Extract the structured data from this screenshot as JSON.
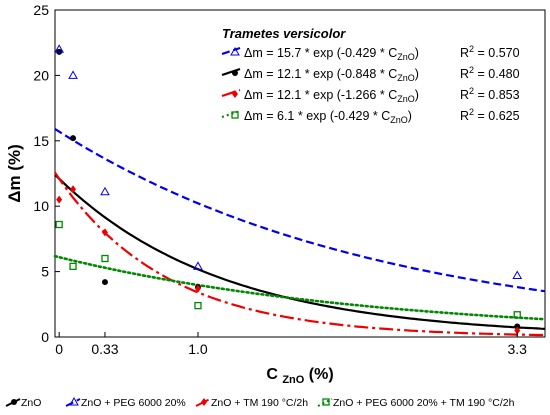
{
  "chart_data": {
    "type": "scatter",
    "legend_title": "Trametes versicolor",
    "xlabel": "C",
    "xlabel_sub": "ZnO",
    "xlabel_unit": "(%)",
    "ylabel": "Δm (%)",
    "xlim": [
      -0.03,
      3.5
    ],
    "ylim": [
      0,
      25
    ],
    "x_ticks": [
      0,
      0.33,
      1.0,
      3.3
    ],
    "x_tick_labels": [
      "0",
      "0.33",
      "1.0",
      "3.3"
    ],
    "y_ticks": [
      0,
      5,
      10,
      15,
      20,
      25
    ],
    "y_tick_labels": [
      "0",
      "5",
      "10",
      "15",
      "20",
      "25"
    ],
    "grid": false,
    "legend_position": "top-right",
    "series": [
      {
        "name": "ZnO",
        "color": "#000000",
        "marker": "circle",
        "line_style": "solid",
        "fit": {
          "a": 12.1,
          "b": 0.848
        },
        "equation": "Δm = 12.1 * exp (-0.848 * C",
        "equation_sub": "ZnO",
        "r2_label": "R",
        "r2_sup": "2",
        "r2_value": " = 0.480",
        "points": [
          [
            0,
            21.8
          ],
          [
            0.1,
            15.2
          ],
          [
            0.33,
            4.2
          ],
          [
            1.0,
            3.8
          ],
          [
            3.3,
            0.8
          ]
        ]
      },
      {
        "name": "ZnO +  PEG 6000 20%",
        "color": "#0000ee",
        "marker": "triangle",
        "line_style": "dashed",
        "fit": {
          "a": 15.7,
          "b": 0.429
        },
        "equation": "Δm = 15.7 * exp (-0.429 * C",
        "equation_sub": "ZnO",
        "r2_label": "R",
        "r2_sup": "2",
        "r2_value": " = 0.570",
        "points": [
          [
            0,
            22.0
          ],
          [
            0.1,
            20.0
          ],
          [
            0.33,
            11.1
          ],
          [
            1.0,
            5.4
          ],
          [
            3.3,
            4.7
          ]
        ]
      },
      {
        "name": "ZnO + TM 190 °C/2h",
        "color": "#ee0000",
        "marker": "diamond",
        "line_style": "dashdot",
        "fit": {
          "a": 12.1,
          "b": 1.266
        },
        "equation": "Δm = 12.1 * exp (-1.266 * C",
        "equation_sub": "ZnO",
        "r2_label": "R",
        "r2_sup": "2",
        "r2_value": " = 0.853",
        "points": [
          [
            0,
            10.5
          ],
          [
            0.1,
            11.3
          ],
          [
            0.33,
            8.0
          ],
          [
            1.0,
            3.7
          ],
          [
            3.3,
            0.5
          ]
        ]
      },
      {
        "name": "ZnO + PEG 6000 20% + TM 190 °C/2h",
        "color": "#008800",
        "marker": "square",
        "line_style": "dotted",
        "fit": {
          "a": 6.1,
          "b": 0.429
        },
        "equation": "Δm =   6.1 * exp (-0.429 * C",
        "equation_sub": "ZnO",
        "r2_label": "R",
        "r2_sup": "2",
        "r2_value": " = 0.625",
        "points": [
          [
            0,
            8.6
          ],
          [
            0.1,
            5.4
          ],
          [
            0.33,
            6.0
          ],
          [
            1.0,
            2.4
          ],
          [
            3.3,
            1.7
          ]
        ]
      }
    ]
  }
}
